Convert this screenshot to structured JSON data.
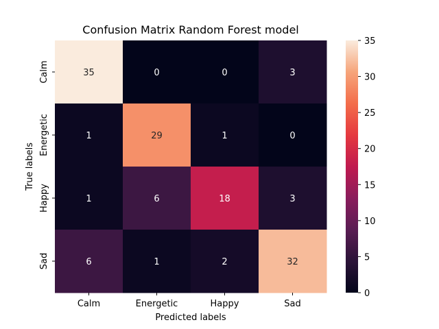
{
  "chart_data": {
    "type": "heatmap",
    "title": "Confusion Matrix Random Forest model",
    "xlabel": "Predicted labels",
    "ylabel": "True labels",
    "x_categories": [
      "Calm",
      "Energetic",
      "Happy",
      "Sad"
    ],
    "y_categories": [
      "Calm",
      "Energetic",
      "Happy",
      "Sad"
    ],
    "values": [
      [
        35,
        0,
        0,
        3
      ],
      [
        1,
        29,
        1,
        0
      ],
      [
        1,
        6,
        18,
        3
      ],
      [
        6,
        1,
        2,
        32
      ]
    ],
    "colorbar": {
      "min": 0,
      "max": 35,
      "ticks": [
        0,
        5,
        10,
        15,
        20,
        25,
        30,
        35
      ]
    },
    "colormap": "rocket"
  }
}
